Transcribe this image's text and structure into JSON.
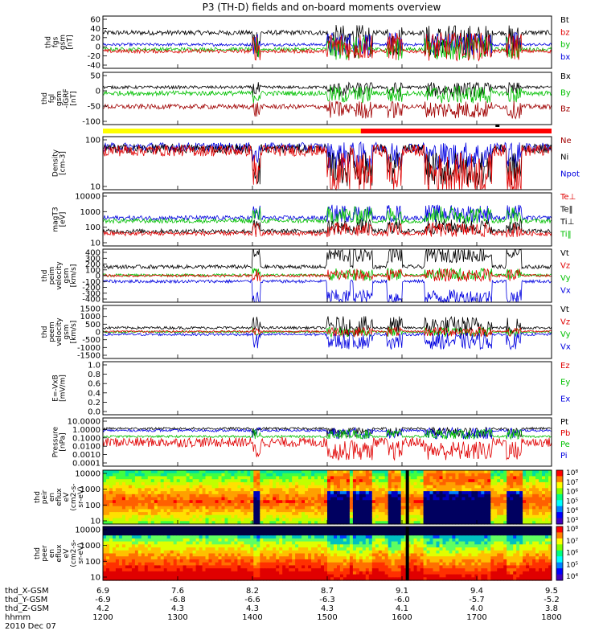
{
  "title": "P3 (TH-D) fields and on-board moments overview",
  "chart_data": {
    "type": "line",
    "time_axis": {
      "range": [
        1200,
        1800
      ],
      "ticks": [
        1200,
        1300,
        1400,
        1500,
        1600,
        1700,
        1800
      ]
    },
    "coord_rows": [
      {
        "label": "thd_X-GSM",
        "values": [
          "6.9",
          "7.6",
          "8.2",
          "8.7",
          "9.1",
          "9.4",
          "9.5"
        ]
      },
      {
        "label": "thd_Y-GSM",
        "values": [
          "-6.9",
          "-6.8",
          "-6.6",
          "-6.3",
          "-6.0",
          "-5.7",
          "-5.2"
        ]
      },
      {
        "label": "thd_Z-GSM",
        "values": [
          "4.2",
          "4.3",
          "4.3",
          "4.3",
          "4.1",
          "4.0",
          "3.8"
        ]
      },
      {
        "label": "hhmm",
        "values": [
          "1200",
          "1300",
          "1400",
          "1500",
          "1600",
          "1700",
          "1800"
        ]
      }
    ],
    "date_label": "2010 Dec 07",
    "panels": [
      {
        "id": "fgs",
        "ylabel": [
          "thd",
          "fgs",
          "gsm",
          "[nT]"
        ],
        "yticks": [
          "60",
          "40",
          "20",
          "0",
          "-20",
          "-40"
        ],
        "legend": [
          {
            "t": "Bt",
            "c": "#000000"
          },
          {
            "t": "bz",
            "c": "#e00000"
          },
          {
            "t": "by",
            "c": "#00c000"
          },
          {
            "t": "bx",
            "c": "#0000e0"
          }
        ],
        "series": [
          {
            "c": "#000000",
            "base": 25,
            "noise": 5,
            "quiet": 7,
            "act": 35
          },
          {
            "c": "#0000e0",
            "base": 0,
            "noise": 3,
            "quiet": 2,
            "act": 25
          },
          {
            "c": "#00c000",
            "base": -10,
            "noise": 4,
            "quiet": -8,
            "act": 25
          },
          {
            "c": "#e00000",
            "base": -14,
            "noise": 4,
            "quiet": -4,
            "act": 30
          }
        ]
      },
      {
        "id": "fgl",
        "ylabel": [
          "thd",
          "fgl",
          "gsm",
          "-IGRF",
          "[nT]"
        ],
        "yticks": [
          "50",
          "0",
          "-50",
          "-100"
        ],
        "legend": [
          {
            "t": "Bx",
            "c": "#000000"
          },
          {
            "t": "By",
            "c": "#00c000"
          },
          {
            "t": "Bz",
            "c": "#a00000"
          }
        ],
        "series": [
          {
            "c": "#000000",
            "base": 10,
            "noise": 5,
            "quiet": 2,
            "act": 25
          },
          {
            "c": "#00c000",
            "base": -10,
            "noise": 8,
            "quiet": -15,
            "act": 30
          },
          {
            "c": "#a00000",
            "base": -55,
            "noise": 8,
            "quiet": -65,
            "act": 30
          }
        ]
      },
      {
        "id": "density",
        "ylabel": [
          "Density",
          "[cm-3]"
        ],
        "yticks": [
          "100",
          "10"
        ],
        "legend": [
          {
            "t": "Ne",
            "c": "#a00000"
          },
          {
            "t": "Ni",
            "c": "#000000"
          },
          {
            "t": "Npot",
            "c": "#0000e0"
          }
        ],
        "series": [
          {
            "c": "#0000e0",
            "base": 70,
            "noise": 0.2,
            "quiet": 30,
            "act": 1.2
          },
          {
            "c": "#000000",
            "base": 60,
            "noise": 0.2,
            "quiet": 8,
            "act": 1.5
          },
          {
            "c": "#e00000",
            "base": 50,
            "noise": 0.25,
            "quiet": 5,
            "act": 1.8
          }
        ]
      },
      {
        "id": "temp",
        "ylabel": [
          "magT3",
          "[eV]"
        ],
        "yticks": [
          "10000",
          "1000",
          "100",
          "10"
        ],
        "legend": [
          {
            "t": "Te⊥",
            "c": "#e00000"
          },
          {
            "t": "Te‖",
            "c": "#000000"
          },
          {
            "t": "Ti⊥",
            "c": "#000000"
          },
          {
            "t": "Ti‖",
            "c": "#00c000"
          }
        ],
        "series": [
          {
            "c": "#0000e0",
            "base": 400,
            "noise": 0.15,
            "quiet": 800,
            "act": 1.2
          },
          {
            "c": "#00c000",
            "base": 250,
            "noise": 0.15,
            "quiet": 600,
            "act": 1.2
          },
          {
            "c": "#000000",
            "base": 50,
            "noise": 0.15,
            "quiet": 100,
            "act": 1.0
          },
          {
            "c": "#e00000",
            "base": 35,
            "noise": 0.15,
            "quiet": 60,
            "act": 1.0
          }
        ]
      },
      {
        "id": "peim",
        "ylabel": [
          "thd",
          "peim",
          "velocity",
          "gsm",
          "[km/s]"
        ],
        "yticks": [
          "400",
          "300",
          "200",
          "100",
          "0",
          "-100",
          "-200",
          "-300",
          "-400"
        ],
        "legend": [
          {
            "t": "Vt",
            "c": "#000000"
          },
          {
            "t": "Vz",
            "c": "#e00000"
          },
          {
            "t": "Vy",
            "c": "#00c000"
          },
          {
            "t": "Vx",
            "c": "#0000e0"
          }
        ],
        "series": [
          {
            "c": "#000000",
            "base": 140,
            "noise": 30,
            "quiet": 330,
            "act": 120
          },
          {
            "c": "#00c000",
            "base": 10,
            "noise": 20,
            "quiet": 20,
            "act": 100
          },
          {
            "c": "#e00000",
            "base": 0,
            "noise": 20,
            "quiet": 10,
            "act": 100
          },
          {
            "c": "#0000e0",
            "base": -90,
            "noise": 25,
            "quiet": -340,
            "act": 120
          }
        ]
      },
      {
        "id": "peem",
        "ylabel": [
          "thd",
          "peem",
          "velocity",
          "gsm",
          "[km/s]"
        ],
        "yticks": [
          "1500",
          "1000",
          "500",
          "0",
          "-500",
          "-1000",
          "-1500"
        ],
        "legend": [
          {
            "t": "Vt",
            "c": "#000000"
          },
          {
            "t": "Vz",
            "c": "#e00000"
          },
          {
            "t": "Vy",
            "c": "#00c000"
          },
          {
            "t": "Vx",
            "c": "#0000e0"
          }
        ],
        "series": [
          {
            "c": "#000000",
            "base": 250,
            "noise": 80,
            "quiet": 350,
            "act": 600
          },
          {
            "c": "#00c000",
            "base": 0,
            "noise": 60,
            "quiet": 0,
            "act": 300
          },
          {
            "c": "#e00000",
            "base": 30,
            "noise": 60,
            "quiet": 20,
            "act": 300
          },
          {
            "c": "#0000e0",
            "base": -150,
            "noise": 80,
            "quiet": -550,
            "act": 500
          }
        ]
      },
      {
        "id": "efield",
        "ylabel": [
          "E=-VxB",
          "[mV/m]"
        ],
        "yticks": [
          "1.0",
          "0.8",
          "0.6",
          "0.4",
          "0.2",
          "0.0"
        ],
        "legend": [
          {
            "t": "Ez",
            "c": "#e00000"
          },
          {
            "t": "Ey",
            "c": "#00c000"
          },
          {
            "t": "Ex",
            "c": "#0000e0"
          }
        ],
        "series": []
      },
      {
        "id": "pressure",
        "ylabel": [
          "Pressure",
          "[nPa]"
        ],
        "yticks": [
          "10.0000",
          "1.0000",
          "0.1000",
          "0.0100",
          "0.0010",
          "0.0001"
        ],
        "legend": [
          {
            "t": "Pt",
            "c": "#000000"
          },
          {
            "t": "Pb",
            "c": "#e00000"
          },
          {
            "t": "Pe",
            "c": "#00c000"
          },
          {
            "t": "Pi",
            "c": "#0000e0"
          }
        ],
        "series": [
          {
            "c": "#000000",
            "base": 0.8,
            "noise": 0.12,
            "quiet": 0.35,
            "act": 1.0
          },
          {
            "c": "#0000e0",
            "base": 0.5,
            "noise": 0.12,
            "quiet": 0.25,
            "act": 1.2
          },
          {
            "c": "#00c000",
            "base": 0.12,
            "noise": 0.12,
            "quiet": 0.2,
            "act": 1.0
          },
          {
            "c": "#e00000",
            "base": 0.03,
            "noise": 0.5,
            "quiet": 0.004,
            "act": 2.0
          }
        ]
      },
      {
        "id": "peir",
        "ylabel": [
          "thd",
          "peir",
          "en",
          "eflux",
          "eV",
          "(cm2-s-",
          "sr-eV)"
        ],
        "yticks": [
          "10000",
          "1000",
          "100",
          "10"
        ],
        "colorbar": [
          "10⁸",
          "10⁷",
          "10⁶",
          "10⁵",
          "10⁴",
          "10³"
        ]
      },
      {
        "id": "peer",
        "ylabel": [
          "thd",
          "peer",
          "en",
          "eflux",
          "eV",
          "(cm2-s-",
          "sr-eV)"
        ],
        "yticks": [
          "10000",
          "1000",
          "100",
          "10"
        ],
        "colorbar": [
          "10⁸",
          "10⁷",
          "10⁶",
          "10⁵",
          "10⁴"
        ]
      }
    ],
    "mode_bar": [
      {
        "from": 1200,
        "to": 1545,
        "c": "#ffff00"
      },
      {
        "from": 1545,
        "to": 1800,
        "c": "#ff0000"
      }
    ],
    "active_intervals": [
      [
        1400,
        1410
      ],
      [
        1500,
        1530
      ],
      [
        1535,
        1560
      ],
      [
        1580,
        1600
      ],
      [
        1630,
        1720
      ],
      [
        1740,
        1760
      ]
    ]
  }
}
